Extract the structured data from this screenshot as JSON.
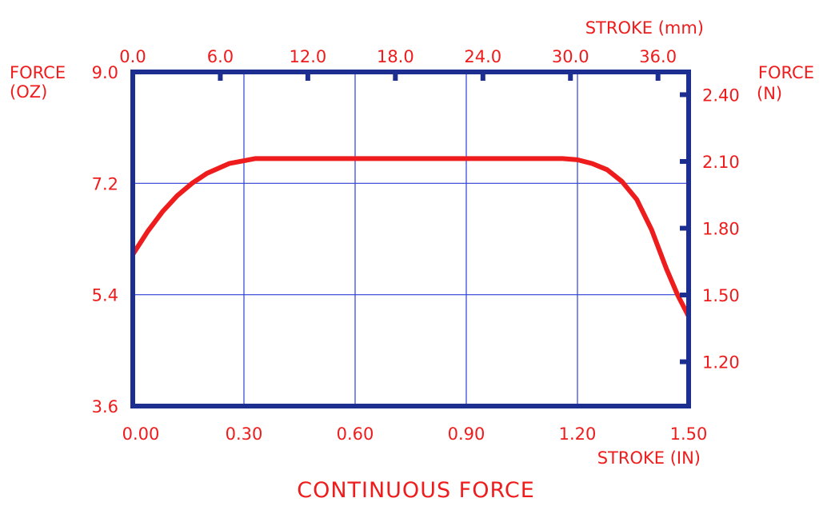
{
  "chart_data": {
    "type": "line",
    "title": "CONTINUOUS FORCE",
    "xlabel": "STROKE (IN)",
    "x2label": "STROKE (mm)",
    "ylabel_line1": "FORCE",
    "ylabel_line2": "(OZ)",
    "y2label_line1": "FORCE",
    "y2label_line2": "(N)",
    "xlim": [
      0,
      1.5
    ],
    "ylim": [
      3.6,
      9.0
    ],
    "x_ticks": [
      "0.00",
      "0.30",
      "0.60",
      "0.90",
      "1.20",
      "1.50"
    ],
    "x2_ticks": [
      "0.0",
      "6.0",
      "12.0",
      "18.0",
      "24.0",
      "30.0",
      "36.0"
    ],
    "y_ticks": [
      "3.6",
      "5.4",
      "7.2",
      "9.0"
    ],
    "y2_ticks": [
      "1.20",
      "1.50",
      "1.80",
      "2.10",
      "2.40"
    ],
    "grid": true,
    "colors": {
      "frame": "#1c2e8f",
      "grid": "#2b3fd6",
      "series": "#ee1c1c",
      "text": "#ee1c1c"
    },
    "series": [
      {
        "x": [
          0.0,
          0.04,
          0.08,
          0.12,
          0.16,
          0.2,
          0.26,
          0.33,
          0.5,
          0.7,
          0.9,
          1.05,
          1.16,
          1.2,
          1.24,
          1.28,
          1.32,
          1.36,
          1.4,
          1.44,
          1.47,
          1.5
        ],
        "y": [
          6.05,
          6.42,
          6.74,
          7.0,
          7.2,
          7.36,
          7.52,
          7.6,
          7.6,
          7.6,
          7.6,
          7.6,
          7.6,
          7.58,
          7.52,
          7.42,
          7.23,
          6.94,
          6.45,
          5.82,
          5.4,
          5.05
        ]
      }
    ]
  }
}
